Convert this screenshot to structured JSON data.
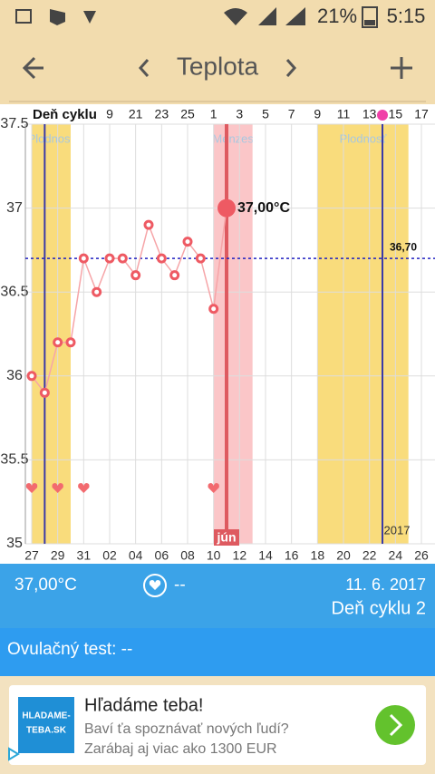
{
  "status": {
    "battery": "21%",
    "time": "5:15"
  },
  "toolbar": {
    "title": "Teplota"
  },
  "chart_data": {
    "type": "line",
    "categories": [
      "27",
      null,
      "29",
      null,
      "31",
      null,
      "02",
      null,
      "04",
      null,
      "06",
      null,
      "08",
      null,
      "10",
      null,
      "12",
      null,
      "14",
      null,
      "16",
      null,
      "18",
      null,
      "20",
      null,
      "22",
      null,
      "24",
      null,
      "26"
    ],
    "values": [
      36.0,
      35.9,
      36.2,
      36.2,
      36.7,
      36.5,
      36.7,
      36.7,
      36.6,
      36.9,
      36.7,
      36.6,
      36.8,
      36.7,
      36.4,
      37.0,
      null,
      null,
      null,
      null,
      null,
      null,
      null,
      null,
      null,
      null,
      null,
      null,
      null,
      null,
      null
    ],
    "color": "#ee5a63",
    "ylim": [
      35,
      37.5
    ],
    "yticks": [
      35,
      35.5,
      36,
      36.5,
      37,
      37.5
    ],
    "top_axis_title": "Deň cyklu",
    "top_labels": [
      null,
      null,
      null,
      null,
      null,
      null,
      "9",
      null,
      "21",
      null,
      "23",
      null,
      "25",
      null,
      "1",
      null,
      "3",
      null,
      "5",
      null,
      "7",
      null,
      "9",
      null,
      "11",
      null,
      "13",
      null,
      "15",
      null,
      "17"
    ],
    "bands": [
      {
        "start": 0,
        "end": 3,
        "label": "Plodnosť",
        "color": "#f9dc7c"
      },
      {
        "start": 14,
        "end": 17,
        "label": "Menzes",
        "color": "#fbc6c8"
      },
      {
        "start": 22,
        "end": 29,
        "label": "Plodnosť",
        "color": "#f9dc7c"
      }
    ],
    "cycle_lines": [
      1,
      27
    ],
    "hearts": [
      0,
      2,
      4,
      14
    ],
    "selected": {
      "index": 15,
      "label": "37,00°C",
      "month": "jún"
    },
    "cover_line": {
      "value": 36.7,
      "label": "36,70"
    },
    "year": "2017"
  },
  "info": {
    "temp": "37,00°C",
    "heart": "--",
    "date": "11. 6. 2017",
    "cycle_day": "Deň cyklu 2"
  },
  "ovulation": "Ovulačný test: --",
  "ad": {
    "logo": [
      "HLADAME-",
      "TEBA.SK"
    ],
    "title": "Hľadáme teba!",
    "line1": "Baví ťa spoznávať nových ľudí?",
    "line2": "Zarábaj aj viac ako 1300 EUR"
  }
}
